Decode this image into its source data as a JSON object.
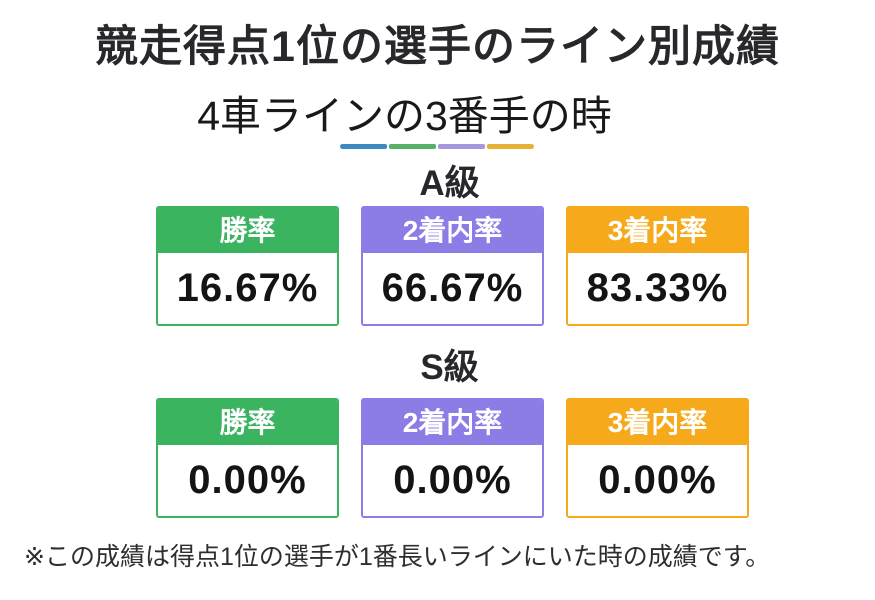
{
  "page": {
    "title": "競走得点1位の選手のライン別成績",
    "subtitle": "4車ラインの3番手の時",
    "footnote": "※この成績は得点1位の選手が1番長いラインにいた時の成績です。"
  },
  "divider_colors": [
    "#3a8bc2",
    "#55b169",
    "#a596dd",
    "#e7b136"
  ],
  "accent_colors": {
    "green": "#3ab45f",
    "purple": "#8b7ce6",
    "orange": "#f7a91c"
  },
  "sections": [
    {
      "label": "A級",
      "cards": [
        {
          "header": "勝率",
          "value": "16.67%",
          "color": "#3ab45f"
        },
        {
          "header": "2着内率",
          "value": "66.67%",
          "color": "#8b7ce6"
        },
        {
          "header": "3着内率",
          "value": "83.33%",
          "color": "#f7a91c"
        }
      ]
    },
    {
      "label": "S級",
      "cards": [
        {
          "header": "勝率",
          "value": "0.00%",
          "color": "#3ab45f"
        },
        {
          "header": "2着内率",
          "value": "0.00%",
          "color": "#8b7ce6"
        },
        {
          "header": "3着内率",
          "value": "0.00%",
          "color": "#f7a91c"
        }
      ]
    }
  ],
  "chart_data": {
    "type": "table",
    "title": "競走得点1位の選手のライン別成績",
    "subtitle": "4車ラインの3番手の時",
    "columns": [
      "勝率",
      "2着内率",
      "3着内率"
    ],
    "unit": "%",
    "rows": [
      {
        "group": "A級",
        "values": [
          16.67,
          66.67,
          83.33
        ]
      },
      {
        "group": "S級",
        "values": [
          0.0,
          0.0,
          0.0
        ]
      }
    ],
    "footnote": "※この成績は得点1位の選手が1番長いラインにいた時の成績です。"
  }
}
